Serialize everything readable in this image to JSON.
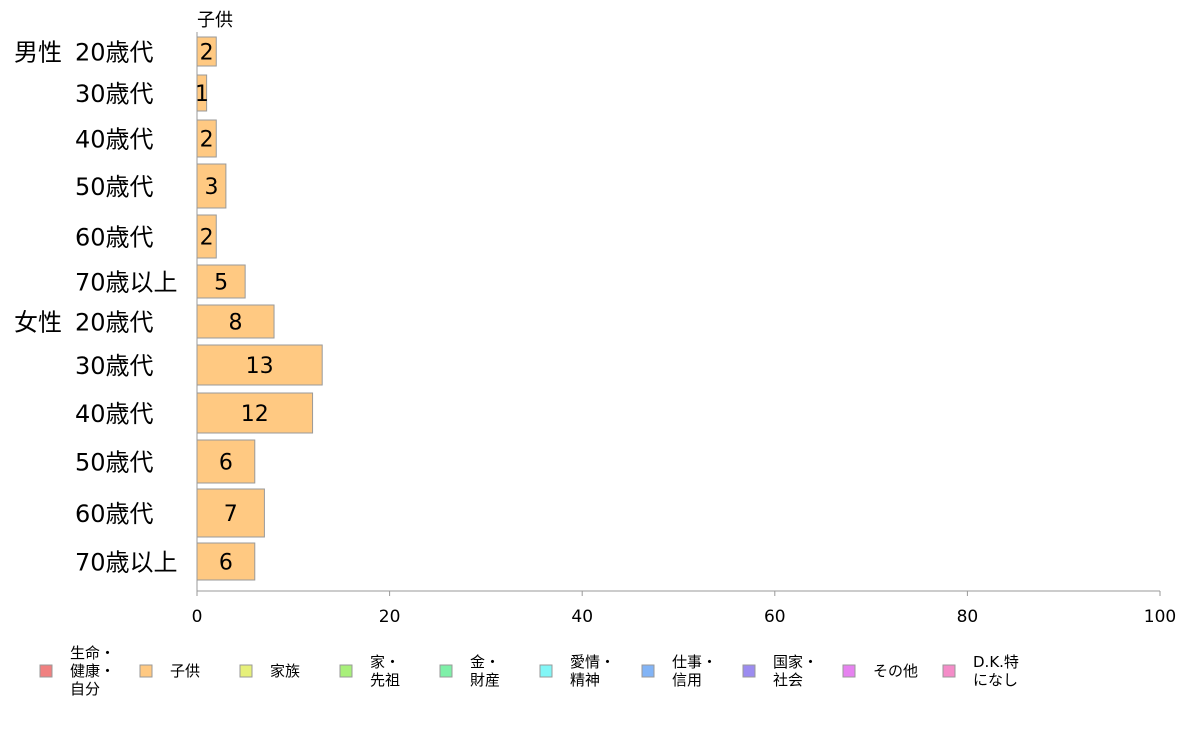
{
  "chart_data": {
    "type": "bar",
    "orientation": "horizontal",
    "series_header": "子供",
    "groups": [
      {
        "label": "男性",
        "categories": [
          "20歳代",
          "30歳代",
          "40歳代",
          "50歳代",
          "60歳代",
          "70歳以上"
        ]
      },
      {
        "label": "女性",
        "categories": [
          "20歳代",
          "30歳代",
          "40歳代",
          "50歳代",
          "60歳代",
          "70歳以上"
        ]
      }
    ],
    "series": [
      {
        "name": "子供",
        "color": "#FFC982",
        "values": [
          2,
          1,
          2,
          3,
          2,
          5,
          8,
          13,
          12,
          6,
          7,
          6
        ]
      }
    ],
    "xlim": [
      0,
      100
    ],
    "xticks": [
      0,
      20,
      40,
      60,
      80,
      100
    ],
    "grid": false,
    "legend_position": "bottom",
    "legend": [
      {
        "lines": [
          "生命・",
          "健康・",
          "自分"
        ],
        "color": "#F08080"
      },
      {
        "lines": [
          "子供"
        ],
        "color": "#FFC982"
      },
      {
        "lines": [
          "家族"
        ],
        "color": "#E6F07A"
      },
      {
        "lines": [
          "家・",
          "先祖"
        ],
        "color": "#A8F07A"
      },
      {
        "lines": [
          "金・",
          "財産"
        ],
        "color": "#7EF0A8"
      },
      {
        "lines": [
          "愛情・",
          "精神"
        ],
        "color": "#82F6F6"
      },
      {
        "lines": [
          "仕事・",
          "信用"
        ],
        "color": "#82B4F6"
      },
      {
        "lines": [
          "国家・",
          "社会"
        ],
        "color": "#9C8CF0"
      },
      {
        "lines": [
          "その他"
        ],
        "color": "#E682F0"
      },
      {
        "lines": [
          "D.K.特",
          "になし"
        ],
        "color": "#F48CC8"
      }
    ]
  }
}
